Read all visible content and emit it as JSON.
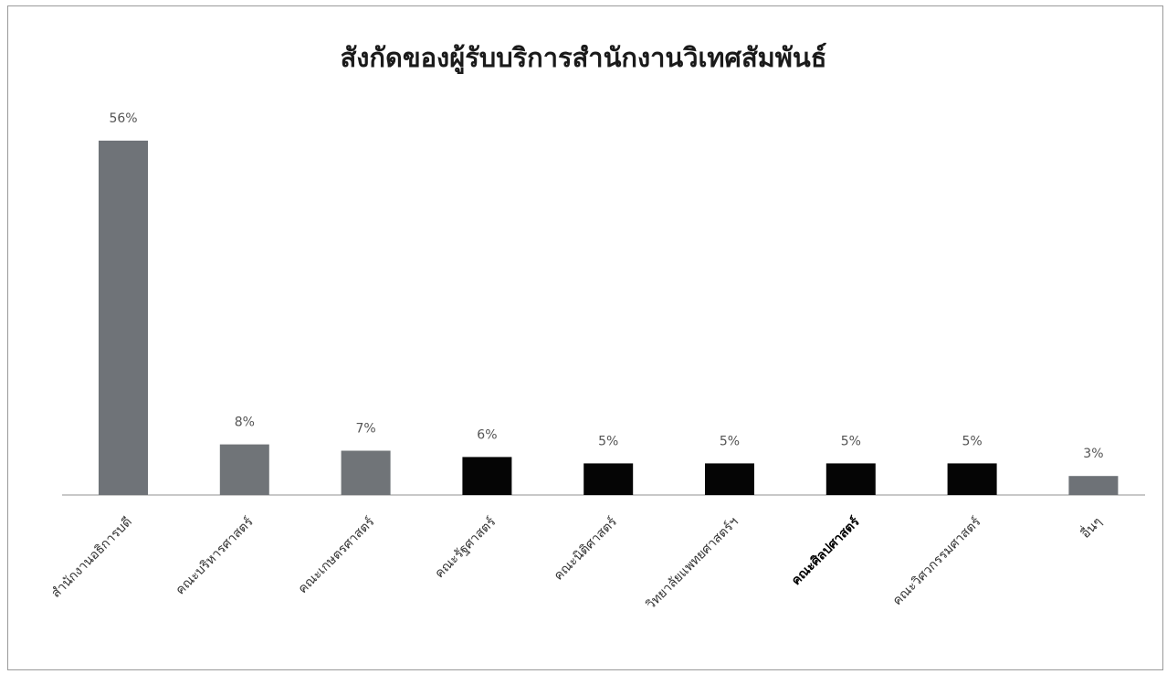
{
  "chart_data": {
    "type": "bar",
    "title": "สังกัดของผู้รับบริการสำนักงานวิเทศสัมพันธ์",
    "xlabel": "",
    "ylabel": "",
    "ylim": [
      0,
      56
    ],
    "grid": false,
    "legend": "none",
    "categories": [
      "สำนักงานอธิการบดี",
      "คณะบริหารศาสตร์",
      "คณะเกษตรศาสตร์",
      "คณะรัฐศาสตร์",
      "คณะนิติศาสตร์",
      "วิทยาลัยแพทยศาสตร์ฯ",
      "คณะศิลปศาสตร์",
      "คณะวิศวกรรมศาสตร์",
      "อื่นๆ"
    ],
    "values": [
      56,
      8,
      7,
      6,
      5,
      5,
      5,
      5,
      3
    ],
    "data_labels": [
      "56%",
      "8%",
      "7%",
      "6%",
      "5%",
      "5%",
      "5%",
      "5%",
      "3%"
    ],
    "bar_colors": [
      "#6f7378",
      "#707478",
      "#707478",
      "#050505",
      "#050505",
      "#050505",
      "#050505",
      "#050505",
      "#6e7277"
    ],
    "bold_tick_index": 6
  }
}
